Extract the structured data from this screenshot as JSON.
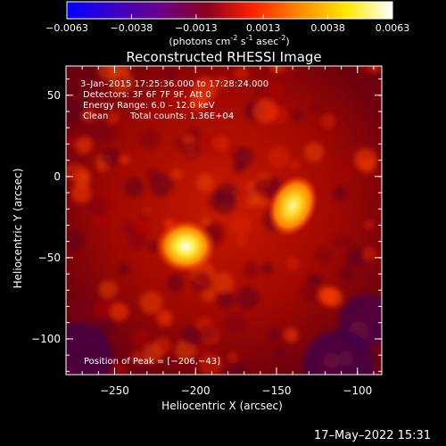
{
  "colorbar": {
    "ticks": [
      "-0.0063",
      "-0.0038",
      "-0.0013",
      "0.0013",
      "0.0038",
      "0.0063"
    ],
    "tick_values": [
      -0.0063,
      -0.0038,
      -0.0013,
      0.0013,
      0.0038,
      0.0063
    ],
    "range": [
      -0.0063,
      0.0063
    ],
    "units": "(photons cm",
    "units_exp1": "-2",
    "units_mid": " s",
    "units_exp2": "-1",
    "units_end": " asec",
    "units_exp3": "-2",
    "units_close": ")",
    "colors": [
      "#0000ff",
      "#3a00c8",
      "#6a0088",
      "#8a0020",
      "#ff2200",
      "#ff8800",
      "#ffe800",
      "#ffffff"
    ]
  },
  "chart_data": {
    "type": "heatmap",
    "title": "Reconstructed RHESSI Image",
    "xlabel": "Heliocentric X (arcsec)",
    "ylabel": "Heliocentric Y (arcsec)",
    "xlim": [
      -280,
      -85
    ],
    "ylim": [
      -122,
      68
    ],
    "x_ticks": [
      -250,
      -200,
      -150,
      -100
    ],
    "y_ticks": [
      50,
      0,
      -50,
      -100
    ],
    "x_tick_labels": [
      "−250",
      "−200",
      "−150",
      "−100"
    ],
    "y_tick_labels": [
      "50",
      "0",
      "−50",
      "−100"
    ],
    "sources": [
      {
        "x": -206,
        "y": -43,
        "value": 0.0063
      },
      {
        "x": -140,
        "y": -18,
        "value": 0.0052
      }
    ],
    "annotations": {
      "time": "3–Jan–2015 17:25:36.000 to 17:28:24.000",
      "detectors": "Detectors: 3F 6F 7F 9F, Att 0",
      "energy": "Energy Range: 6.0 – 12.0 keV",
      "method": "Clean",
      "counts": "Total counts: 1.36E+04",
      "peak": "Position of Peak = [−206,−43]"
    }
  },
  "footer": {
    "timestamp": "17–May–2022 15:31"
  }
}
